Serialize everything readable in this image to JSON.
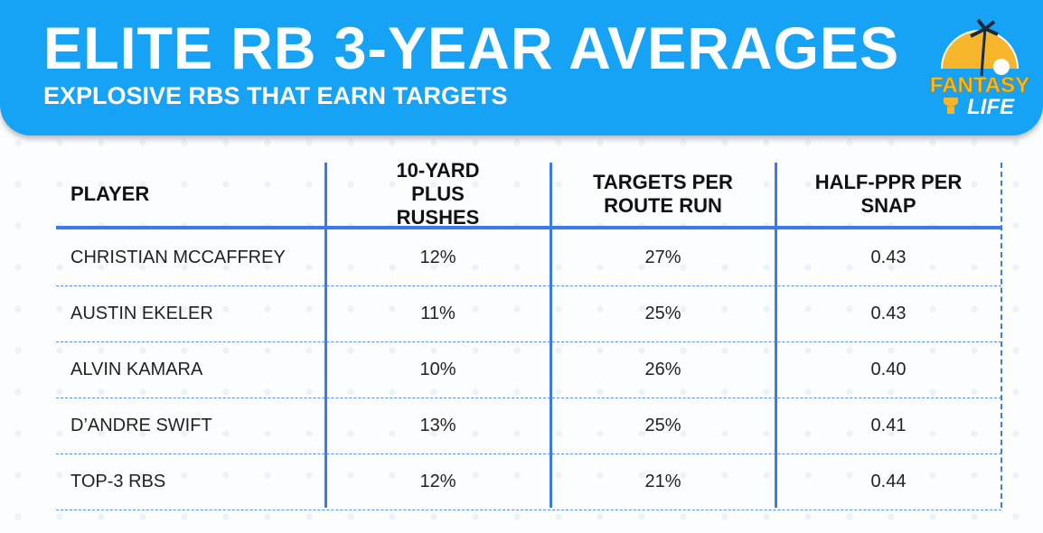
{
  "header": {
    "title": "ELITE RB 3-YEAR AVERAGES",
    "subtitle": "EXPLOSIVE RBS THAT EARN TARGETS",
    "logo_text": "FANTASY LIFE"
  },
  "colors": {
    "banner": "#16a2f5",
    "grid": "#3b7be8"
  },
  "chart_data": {
    "type": "table",
    "columns": [
      "PLAYER",
      "10-YARD PLUS RUSHES",
      "TARGETS PER ROUTE RUN",
      "HALF-PPR PER SNAP"
    ],
    "rows": [
      [
        "CHRISTIAN MCCAFFREY",
        "12%",
        "27%",
        "0.43"
      ],
      [
        "AUSTIN EKELER",
        "11%",
        "25%",
        "0.43"
      ],
      [
        "ALVIN KAMARA",
        "10%",
        "26%",
        "0.40"
      ],
      [
        "D’ANDRE SWIFT",
        "13%",
        "25%",
        "0.41"
      ],
      [
        "TOP-3 RBS",
        "12%",
        "21%",
        "0.44"
      ]
    ]
  }
}
